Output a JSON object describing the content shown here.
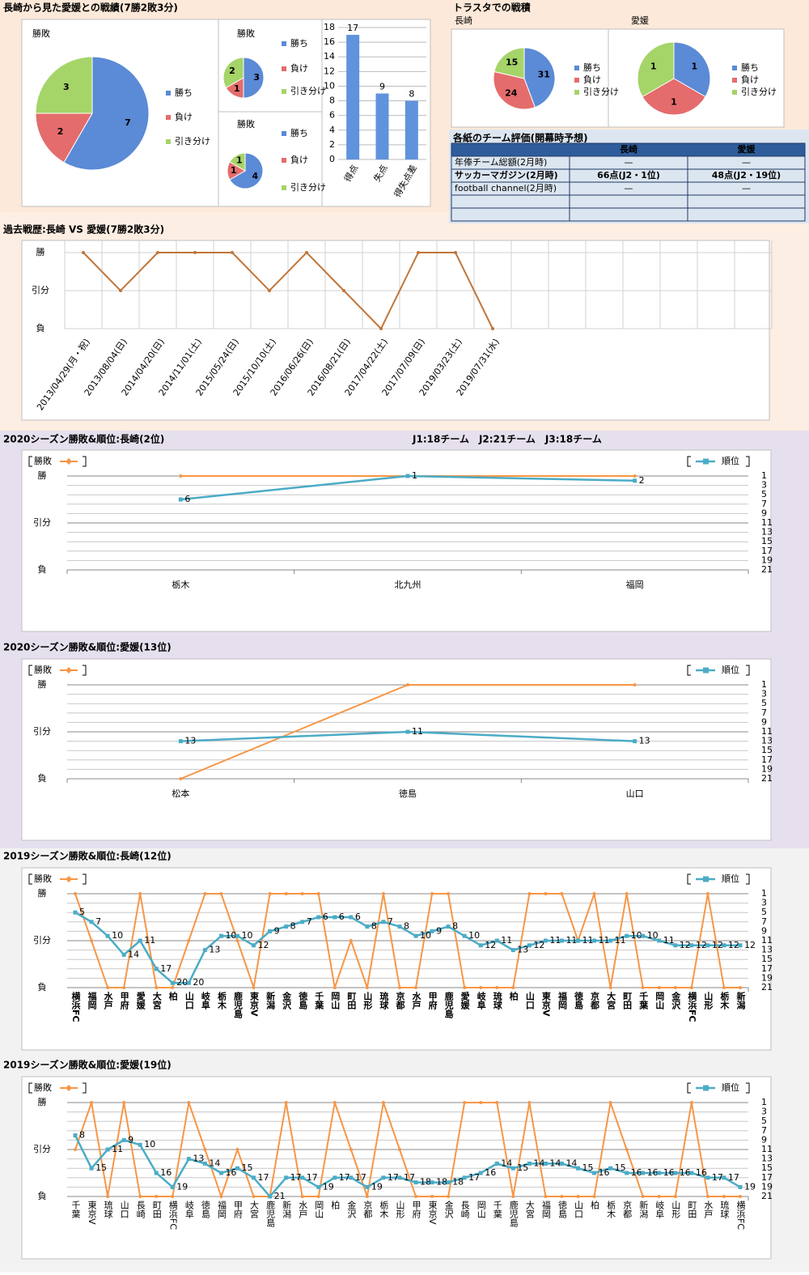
{
  "headings": {
    "main": "長崎から見た愛媛との戦績(7勝2敗3分)",
    "stadium": "トラスタでの戦積"
  },
  "chart_data": [
    {
      "type": "pie",
      "title": "勝敗",
      "categories": [
        "勝ち",
        "負け",
        "引き分け"
      ],
      "values": [
        7,
        2,
        3
      ],
      "colors": [
        "#5b8ad6",
        "#e46c6c",
        "#a5d468"
      ]
    },
    {
      "type": "pie",
      "title": "勝敗",
      "categories": [
        "勝ち",
        "負け",
        "引き分け"
      ],
      "values": [
        3,
        1,
        2
      ],
      "colors": [
        "#5b8ad6",
        "#e46c6c",
        "#a5d468"
      ]
    },
    {
      "type": "pie",
      "title": "勝敗",
      "categories": [
        "勝ち",
        "負け",
        "引き分け"
      ],
      "values": [
        4,
        1,
        1
      ],
      "colors": [
        "#5b8ad6",
        "#e46c6c",
        "#a5d468"
      ]
    },
    {
      "type": "bar",
      "categories": [
        "得点",
        "失点",
        "得失点差"
      ],
      "values": [
        17,
        9,
        8
      ],
      "color": "#5f93dc",
      "ylim": [
        0,
        18
      ],
      "yticks": [
        0,
        2,
        4,
        6,
        8,
        10,
        12,
        14,
        16,
        18
      ],
      "grid": true
    },
    {
      "type": "pie",
      "title": "長崎",
      "categories": [
        "勝ち",
        "負け",
        "引き分け"
      ],
      "values": [
        31,
        24,
        15
      ],
      "colors": [
        "#5b8ad6",
        "#e46c6c",
        "#a5d468"
      ]
    },
    {
      "type": "pie",
      "title": "愛媛",
      "categories": [
        "勝ち",
        "負け",
        "引き分け"
      ],
      "values": [
        1,
        1,
        1
      ],
      "colors": [
        "#5b8ad6",
        "#e46c6c",
        "#a5d468"
      ]
    },
    {
      "type": "line",
      "title": "過去戦歴:長崎 VS 愛媛(7勝2敗3分)",
      "categories": [
        "2013/04/29(月・祝)",
        "2013/08/04(日)",
        "2014/04/20(日)",
        "2014/11/01(土)",
        "2015/05/24(日)",
        "2015/10/10(土)",
        "2016/06/26(日)",
        "2016/08/21(日)",
        "2017/04/22(土)",
        "2017/07/09(日)",
        "2019/03/23(土)",
        "2019/07/31(水)"
      ],
      "values": [
        1,
        0,
        1,
        1,
        1,
        0,
        1,
        0,
        -1,
        1,
        1,
        -1
      ],
      "color": "#c0763a",
      "ylim": [
        -1,
        1
      ],
      "yticks": [
        {
          "value": 1,
          "label": "勝"
        },
        {
          "value": 0,
          "label": "引分"
        },
        {
          "value": -1,
          "label": "負"
        }
      ],
      "grid": true
    },
    {
      "type": "line",
      "title": "2020シーズン勝敗&順位:長崎(2位)",
      "subtitle": "J1:18チーム　J2:21チーム　J3:18チーム",
      "categories": [
        "栃木",
        "北九州",
        "福岡"
      ],
      "series": [
        {
          "name": "勝敗",
          "color": "#f79646",
          "values": [
            1,
            1,
            1
          ]
        },
        {
          "name": "順位",
          "color": "#4bacc6",
          "axis": "y2",
          "values": [
            6,
            1,
            2
          ]
        }
      ],
      "ylim": [
        -1,
        1
      ],
      "yticks": [
        {
          "value": 1,
          "label": "勝"
        },
        {
          "value": 0,
          "label": "引分"
        },
        {
          "value": -1,
          "label": "負"
        }
      ],
      "y2lim": [
        1,
        21
      ],
      "y2ticks": [
        1,
        3,
        5,
        7,
        9,
        11,
        13,
        15,
        17,
        19,
        21
      ],
      "y2_reversed": true,
      "grid": true
    },
    {
      "type": "line",
      "title": "2020シーズン勝敗&順位:愛媛(13位)",
      "categories": [
        "松本",
        "徳島",
        "山口"
      ],
      "series": [
        {
          "name": "勝敗",
          "color": "#f79646",
          "values": [
            -1,
            1,
            1
          ]
        },
        {
          "name": "順位",
          "color": "#4bacc6",
          "axis": "y2",
          "values": [
            13,
            11,
            13
          ]
        }
      ],
      "ylim": [
        -1,
        1
      ],
      "yticks": [
        {
          "value": 1,
          "label": "勝"
        },
        {
          "value": 0,
          "label": "引分"
        },
        {
          "value": -1,
          "label": "負"
        }
      ],
      "y2lim": [
        1,
        21
      ],
      "y2ticks": [
        1,
        3,
        5,
        7,
        9,
        11,
        13,
        15,
        17,
        19,
        21
      ],
      "y2_reversed": true,
      "grid": true
    },
    {
      "type": "line",
      "title": "2019シーズン勝敗&順位:長崎(12位)",
      "categories": [
        "横浜FC",
        "福岡",
        "水戸",
        "甲府",
        "愛媛",
        "大宮",
        "柏",
        "山口",
        "岐阜",
        "栃木",
        "鹿児島",
        "東京V",
        "新潟",
        "金沢",
        "徳島",
        "千葉",
        "岡山",
        "町田",
        "山形",
        "琉球",
        "京都",
        "水戸",
        "甲府",
        "鹿児島",
        "愛媛",
        "岐阜",
        "琉球",
        "柏",
        "山口",
        "東京V",
        "福岡",
        "徳島",
        "京都",
        "大宮",
        "町田",
        "千葉",
        "岡山",
        "金沢",
        "横浜FC",
        "山形",
        "栃木",
        "新潟"
      ],
      "series": [
        {
          "name": "勝敗",
          "color": "#f79646",
          "values": [
            1,
            0,
            -1,
            -1,
            1,
            -1,
            -1,
            0,
            1,
            1,
            0,
            -1,
            1,
            1,
            1,
            1,
            -1,
            0,
            -1,
            1,
            -1,
            -1,
            1,
            1,
            -1,
            -1,
            -1,
            -1,
            1,
            1,
            1,
            0,
            1,
            -1,
            1,
            -1,
            -1,
            -1,
            -1,
            1,
            -1,
            -1
          ]
        },
        {
          "name": "順位",
          "color": "#4bacc6",
          "axis": "y2",
          "values": [
            5,
            7,
            10,
            14,
            11,
            17,
            20,
            20,
            13,
            10,
            10,
            12,
            9,
            8,
            7,
            6,
            6,
            6,
            8,
            7,
            8,
            10,
            9,
            8,
            10,
            12,
            11,
            13,
            12,
            11,
            11,
            11,
            11,
            11,
            10,
            10,
            11,
            12,
            12,
            12,
            12,
            12
          ]
        }
      ],
      "ylim": [
        -1,
        1
      ],
      "yticks": [
        {
          "value": 1,
          "label": "勝"
        },
        {
          "value": 0,
          "label": "引分"
        },
        {
          "value": -1,
          "label": "負"
        }
      ],
      "y2lim": [
        1,
        21
      ],
      "y2ticks": [
        1,
        3,
        5,
        7,
        9,
        11,
        13,
        15,
        17,
        19,
        21
      ],
      "y2_reversed": true,
      "grid": true
    },
    {
      "type": "line",
      "title": "2019シーズン勝敗&順位:愛媛(19位)",
      "categories": [
        "千葉",
        "東京V",
        "琉球",
        "山口",
        "長崎",
        "町田",
        "横浜FC",
        "岐阜",
        "徳島",
        "福岡",
        "甲府",
        "大宮",
        "鹿児島",
        "新潟",
        "水戸",
        "岡山",
        "柏",
        "金沢",
        "京都",
        "栃木",
        "山形",
        "甲府",
        "東京V",
        "金沢",
        "長崎",
        "岡山",
        "千葉",
        "鹿児島",
        "大宮",
        "福岡",
        "徳島",
        "山口",
        "柏",
        "栃木",
        "京都",
        "新潟",
        "岐阜",
        "山形",
        "町田",
        "水戸",
        "琉球",
        "横浜FC"
      ],
      "series": [
        {
          "name": "勝敗",
          "color": "#f79646",
          "values": [
            0,
            1,
            -1,
            1,
            -1,
            -1,
            -1,
            1,
            0,
            -1,
            0,
            -1,
            -1,
            1,
            -1,
            -1,
            1,
            0,
            -1,
            1,
            0,
            -1,
            -1,
            -1,
            1,
            1,
            1,
            -1,
            1,
            -1,
            -1,
            -1,
            -1,
            1,
            0,
            -1,
            -1,
            -1,
            1,
            -1,
            -1,
            -1
          ]
        },
        {
          "name": "順位",
          "color": "#4bacc6",
          "axis": "y2",
          "values": [
            8,
            15,
            11,
            9,
            10,
            16,
            19,
            13,
            14,
            16,
            15,
            17,
            21,
            17,
            17,
            19,
            17,
            17,
            19,
            17,
            17,
            18,
            18,
            18,
            17,
            16,
            14,
            15,
            14,
            14,
            14,
            15,
            16,
            15,
            16,
            16,
            16,
            16,
            16,
            17,
            17,
            19
          ]
        }
      ],
      "ylim": [
        -1,
        1
      ],
      "yticks": [
        {
          "value": 1,
          "label": "勝"
        },
        {
          "value": 0,
          "label": "引分"
        },
        {
          "value": -1,
          "label": "負"
        }
      ],
      "y2lim": [
        1,
        21
      ],
      "y2ticks": [
        1,
        3,
        5,
        7,
        9,
        11,
        13,
        15,
        17,
        19,
        21
      ],
      "y2_reversed": true,
      "grid": true
    }
  ],
  "table": {
    "title": "各紙のチーム評価(開幕時予想)",
    "header": [
      "長崎",
      "愛媛"
    ],
    "rows": [
      [
        "年俸チーム総額(2月時)",
        "—",
        "—"
      ],
      [
        "サッカーマガジン(2月時)",
        "66点(J2・1位)",
        "48点(J2・19位)"
      ],
      [
        "football channel(2月時)",
        "—",
        "—"
      ]
    ]
  }
}
